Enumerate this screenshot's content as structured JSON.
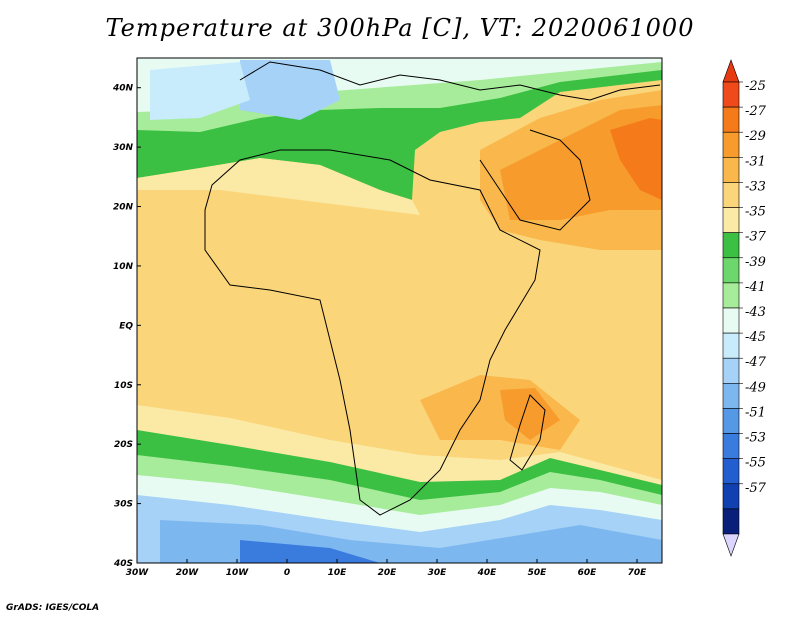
{
  "title": "Temperature at 300hPa [C], VT: 2020061000",
  "credit": "GrADS: IGES/COLA",
  "map": {
    "lon_range": [
      -30,
      75
    ],
    "lat_range": [
      -40,
      45
    ],
    "lon_ticks": [
      {
        "value": -30,
        "label": "30W"
      },
      {
        "value": -20,
        "label": "20W"
      },
      {
        "value": -10,
        "label": "10W"
      },
      {
        "value": 0,
        "label": "0"
      },
      {
        "value": 10,
        "label": "10E"
      },
      {
        "value": 20,
        "label": "20E"
      },
      {
        "value": 30,
        "label": "30E"
      },
      {
        "value": 40,
        "label": "40E"
      },
      {
        "value": 50,
        "label": "50E"
      },
      {
        "value": 60,
        "label": "60E"
      },
      {
        "value": 70,
        "label": "70E"
      }
    ],
    "lat_ticks": [
      {
        "value": 40,
        "label": "40N"
      },
      {
        "value": 30,
        "label": "30N"
      },
      {
        "value": 20,
        "label": "20N"
      },
      {
        "value": 10,
        "label": "10N"
      },
      {
        "value": 0,
        "label": "EQ"
      },
      {
        "value": -10,
        "label": "10S"
      },
      {
        "value": -20,
        "label": "20S"
      },
      {
        "value": -30,
        "label": "30S"
      },
      {
        "value": -40,
        "label": "40S"
      }
    ]
  },
  "colorbar": {
    "levels": [
      "-25",
      "-27",
      "-29",
      "-31",
      "-33",
      "-35",
      "-37",
      "-39",
      "-41",
      "-43",
      "-45",
      "-47",
      "-49",
      "-51",
      "-53",
      "-55",
      "-57"
    ],
    "colors": [
      "#f04a1a",
      "#f57a1a",
      "#f79b2c",
      "#fab84c",
      "#fbd57a",
      "#fbeaa6",
      "#3cc043",
      "#6cd76a",
      "#a6ec9a",
      "#e8fbf3",
      "#c8ecfb",
      "#a5d2f6",
      "#7db7f0",
      "#5598e6",
      "#3a7cde",
      "#235ed0",
      "#1140b0",
      "#0a1f7a"
    ],
    "top_arrow_color": "#e83a10",
    "bottom_arrow_color": "#dcd6ff"
  }
}
